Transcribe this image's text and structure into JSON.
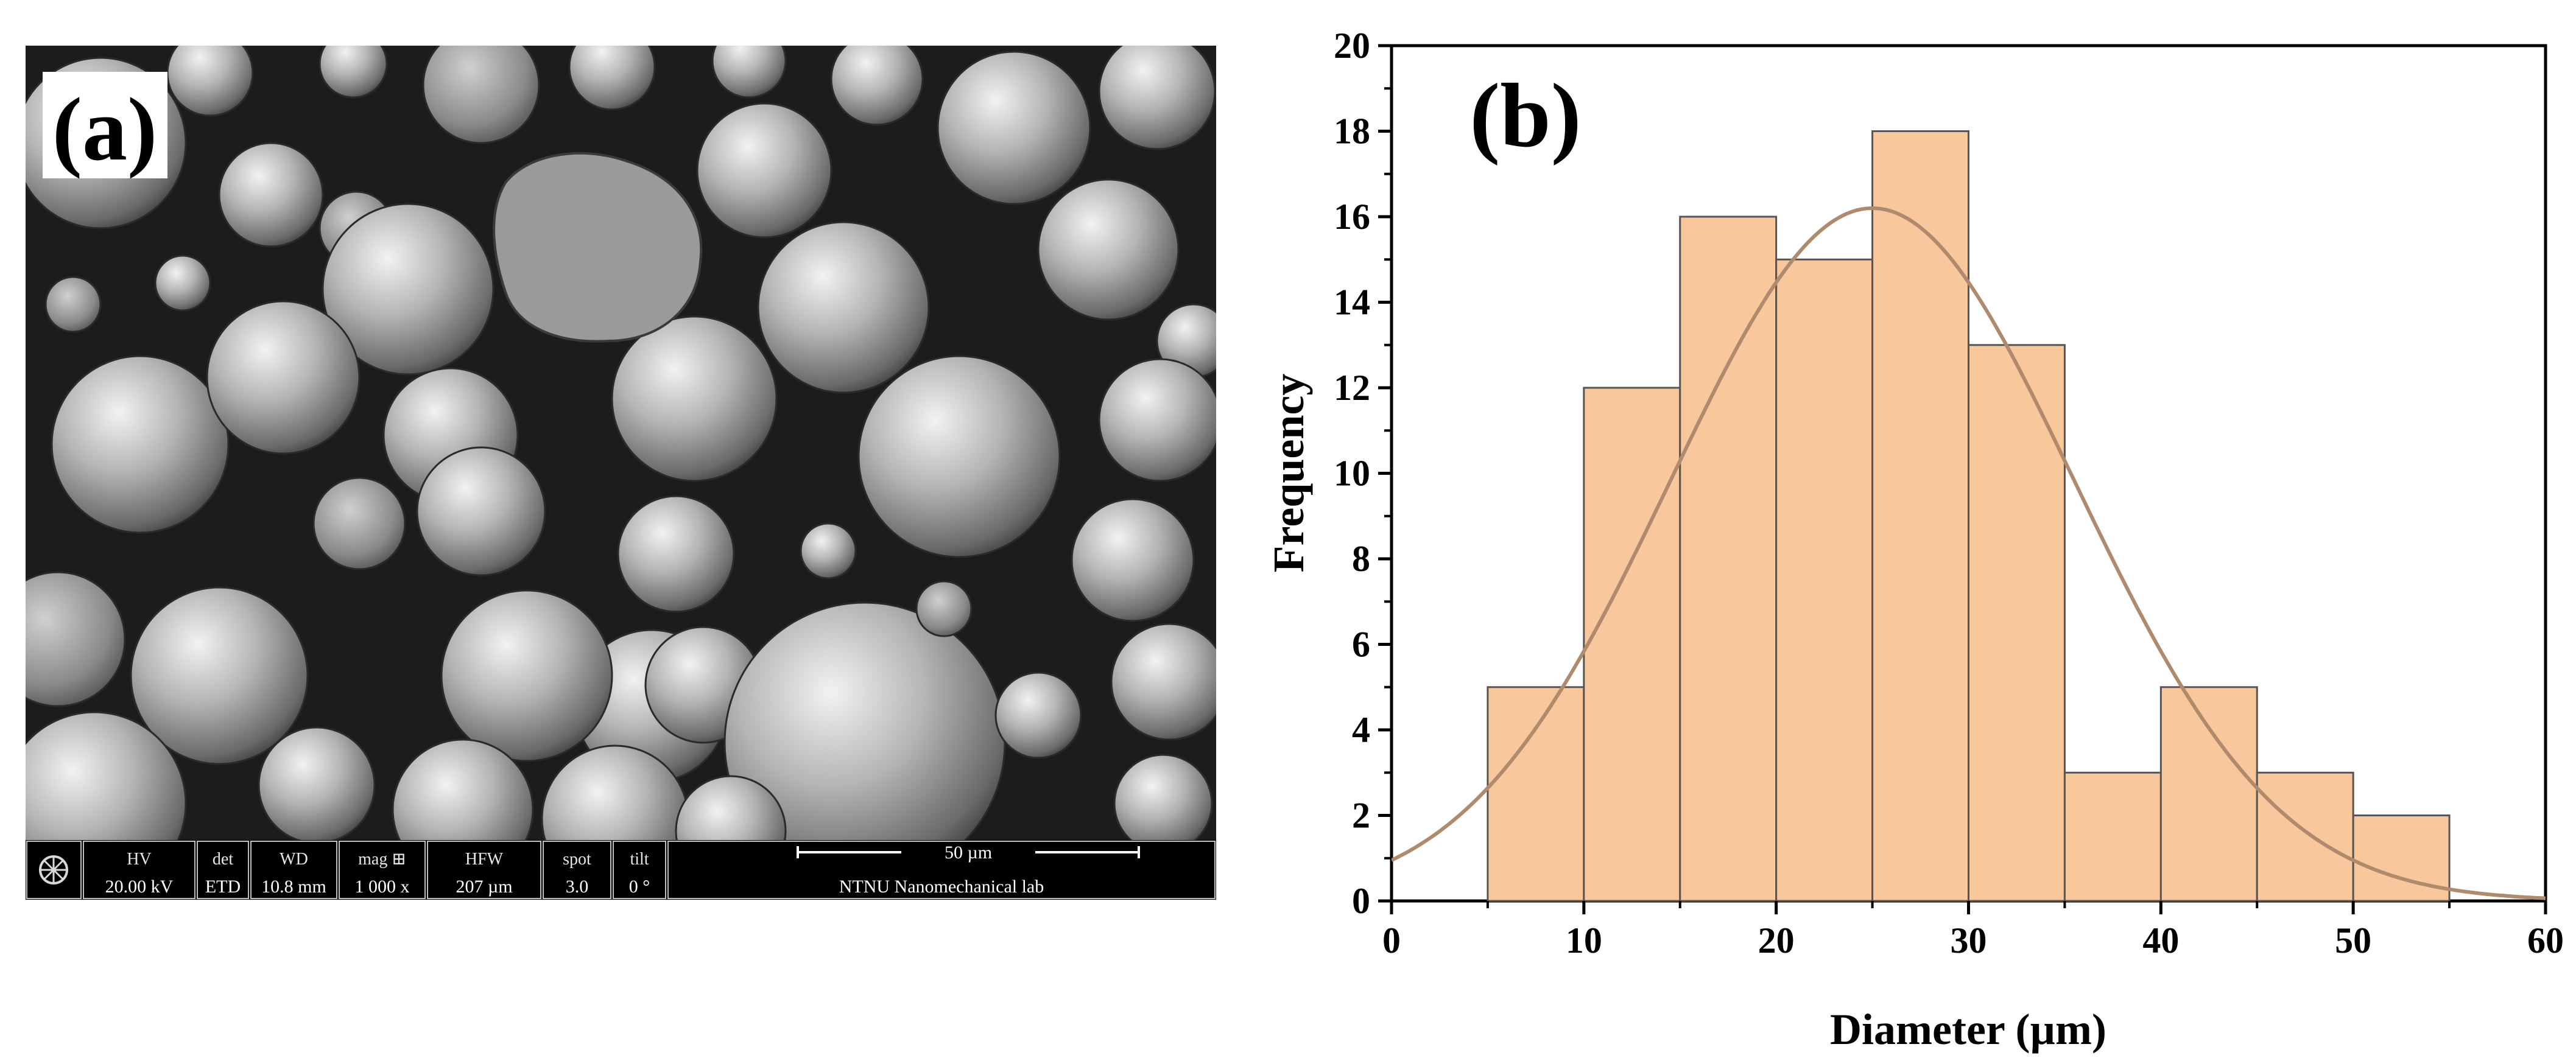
{
  "panel_a": {
    "label": "(a)",
    "info_bar": {
      "cells": [
        {
          "name": "hv",
          "header": "HV",
          "value": "20.00 kV"
        },
        {
          "name": "det",
          "header": "det",
          "value": "ETD"
        },
        {
          "name": "wd",
          "header": "WD",
          "value": "10.8 mm"
        },
        {
          "name": "mag",
          "header": "mag ⊞",
          "value": "1 000 x"
        },
        {
          "name": "hfw",
          "header": "HFW",
          "value": "207 µm"
        },
        {
          "name": "spot",
          "header": "spot",
          "value": "3.0"
        },
        {
          "name": "tilt",
          "header": "tilt",
          "value": "0 °"
        }
      ],
      "scale_bar_label": "50 µm",
      "lab_name": "NTNU Nanomechanical lab"
    }
  },
  "panel_b": {
    "label": "(b)"
  },
  "chart_data": {
    "type": "bar",
    "title": "",
    "xlabel": "Diameter (µm)",
    "ylabel": "Frequency",
    "xlim": [
      0,
      60
    ],
    "ylim": [
      0,
      20
    ],
    "xticks": [
      0,
      10,
      20,
      30,
      40,
      50,
      60
    ],
    "yticks": [
      0,
      2,
      4,
      6,
      8,
      10,
      12,
      14,
      16,
      18,
      20
    ],
    "bin_edges": [
      5,
      10,
      15,
      20,
      25,
      30,
      35,
      40,
      45,
      50,
      55
    ],
    "values": [
      5,
      12,
      16,
      15,
      18,
      13,
      3,
      5,
      3,
      2
    ],
    "fit_curve": {
      "type": "normal",
      "mean": 25,
      "peak": 16.2,
      "sigma": 10.5
    },
    "grid": false,
    "legend": "none",
    "bar_color": "#f8c89c",
    "bar_edge_color": "#555555",
    "curve_color": "#b08a6c"
  }
}
